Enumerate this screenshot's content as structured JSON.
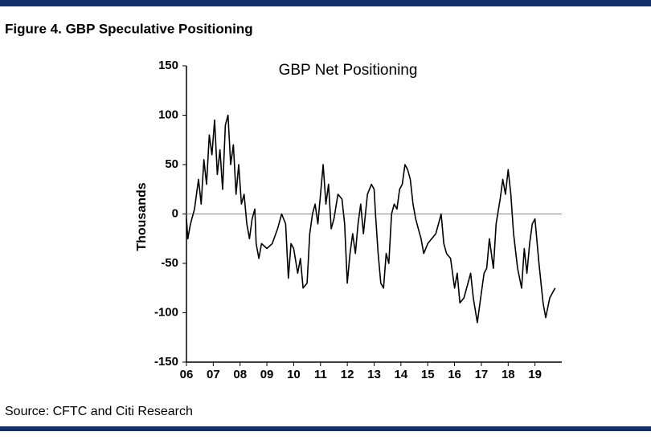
{
  "figure_title": "Figure 4. GBP Speculative Positioning",
  "source": "Source: CFTC and Citi Research",
  "chart_data": {
    "type": "line",
    "title": "GBP Net Positioning",
    "y_label": "Thousands",
    "color": "#000000",
    "zero_line": true,
    "xlim": [
      6,
      20
    ],
    "ylim": [
      -150,
      150
    ],
    "yticks": [
      -150,
      -100,
      -50,
      0,
      50,
      100,
      150
    ],
    "xticks": [
      {
        "value": 6,
        "label": "06"
      },
      {
        "value": 7,
        "label": "07"
      },
      {
        "value": 8,
        "label": "08"
      },
      {
        "value": 9,
        "label": "09"
      },
      {
        "value": 10,
        "label": "10"
      },
      {
        "value": 11,
        "label": "11"
      },
      {
        "value": 12,
        "label": "12"
      },
      {
        "value": 13,
        "label": "13"
      },
      {
        "value": 14,
        "label": "14"
      },
      {
        "value": 15,
        "label": "15"
      },
      {
        "value": 16,
        "label": "16"
      },
      {
        "value": 17,
        "label": "17"
      },
      {
        "value": 18,
        "label": "18"
      },
      {
        "value": 19,
        "label": "19"
      }
    ],
    "x": [
      6.0,
      6.05,
      6.15,
      6.3,
      6.45,
      6.55,
      6.65,
      6.75,
      6.85,
      6.95,
      7.05,
      7.15,
      7.25,
      7.35,
      7.45,
      7.55,
      7.65,
      7.75,
      7.85,
      7.95,
      8.05,
      8.15,
      8.25,
      8.35,
      8.45,
      8.55,
      8.6,
      8.7,
      8.8,
      9.0,
      9.2,
      9.4,
      9.55,
      9.7,
      9.8,
      9.9,
      10.0,
      10.15,
      10.25,
      10.35,
      10.5,
      10.6,
      10.7,
      10.8,
      10.9,
      11.0,
      11.1,
      11.2,
      11.3,
      11.4,
      11.5,
      11.65,
      11.8,
      11.9,
      12.0,
      12.1,
      12.2,
      12.3,
      12.4,
      12.5,
      12.6,
      12.75,
      12.9,
      13.0,
      13.05,
      13.15,
      13.25,
      13.35,
      13.45,
      13.55,
      13.65,
      13.75,
      13.85,
      13.95,
      14.05,
      14.15,
      14.25,
      14.35,
      14.45,
      14.55,
      14.65,
      14.75,
      14.85,
      15.0,
      15.15,
      15.3,
      15.4,
      15.5,
      15.6,
      15.7,
      15.85,
      16.0,
      16.1,
      16.2,
      16.35,
      16.5,
      16.6,
      16.7,
      16.85,
      17.0,
      17.1,
      17.2,
      17.3,
      17.45,
      17.55,
      17.7,
      17.8,
      17.9,
      18.0,
      18.1,
      18.2,
      18.35,
      18.5,
      18.6,
      18.7,
      18.8,
      18.9,
      19.0,
      19.15,
      19.3,
      19.4,
      19.55,
      19.65,
      19.75
    ],
    "values": [
      -5,
      -25,
      -10,
      5,
      35,
      10,
      55,
      30,
      80,
      60,
      95,
      40,
      65,
      25,
      90,
      100,
      50,
      70,
      20,
      50,
      10,
      20,
      -10,
      -25,
      -5,
      5,
      -30,
      -45,
      -30,
      -35,
      -30,
      -15,
      0,
      -10,
      -65,
      -30,
      -35,
      -60,
      -45,
      -75,
      -70,
      -20,
      0,
      10,
      -10,
      20,
      50,
      10,
      30,
      -15,
      -5,
      20,
      15,
      -10,
      -70,
      -40,
      -20,
      -40,
      -10,
      10,
      -20,
      20,
      30,
      25,
      0,
      -40,
      -70,
      -75,
      -40,
      -50,
      0,
      10,
      5,
      25,
      30,
      50,
      45,
      35,
      10,
      -5,
      -15,
      -25,
      -40,
      -30,
      -25,
      -20,
      -10,
      0,
      -30,
      -40,
      -45,
      -75,
      -60,
      -90,
      -85,
      -70,
      -60,
      -85,
      -110,
      -80,
      -60,
      -55,
      -25,
      -55,
      -10,
      15,
      35,
      20,
      45,
      20,
      -20,
      -55,
      -75,
      -35,
      -60,
      -30,
      -10,
      -5,
      -50,
      -90,
      -105,
      -85,
      -80,
      -75
    ]
  }
}
